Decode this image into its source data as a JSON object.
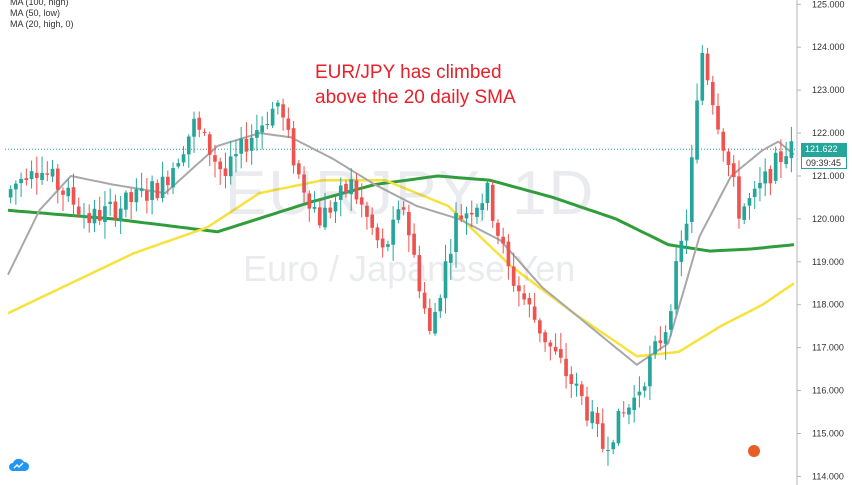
{
  "legend": {
    "items": [
      "MA (100, high)",
      "MA (50, low)",
      "MA (20, high, 0)"
    ]
  },
  "annotation": {
    "line1": "EUR/JPY has climbed",
    "line2": "above the 20 daily SMA"
  },
  "watermark": {
    "symbol": "EURJPY, 1D",
    "description": "Euro / Japanese Yen"
  },
  "price_tag": {
    "price": "121.622",
    "countdown": "09:39:45"
  },
  "colors": {
    "up": "#26a69a",
    "down": "#ef5350",
    "ma100": "#2e9e3a",
    "ma50": "#f7e23b",
    "ma20": "#a8a8a8",
    "annotation": "#e8202a"
  },
  "chart_data": {
    "type": "candlestick",
    "ylim": [
      113.8,
      125.1
    ],
    "yticks": [
      "125.000",
      "124.000",
      "123.000",
      "122.000",
      "121.000",
      "120.000",
      "119.000",
      "118.000",
      "117.000",
      "116.000",
      "115.000",
      "114.000"
    ],
    "last_price": 121.622,
    "candle_count": 150,
    "waypoints": [
      {
        "i": 0,
        "p": 120.5
      },
      {
        "i": 5,
        "p": 121.3
      },
      {
        "i": 9,
        "p": 120.9
      },
      {
        "i": 16,
        "p": 120.0
      },
      {
        "i": 22,
        "p": 120.3
      },
      {
        "i": 30,
        "p": 120.8
      },
      {
        "i": 36,
        "p": 122.2
      },
      {
        "i": 42,
        "p": 121.0
      },
      {
        "i": 46,
        "p": 121.8
      },
      {
        "i": 52,
        "p": 122.7
      },
      {
        "i": 56,
        "p": 121.0
      },
      {
        "i": 60,
        "p": 120.0
      },
      {
        "i": 66,
        "p": 120.8
      },
      {
        "i": 72,
        "p": 119.2
      },
      {
        "i": 76,
        "p": 120.3
      },
      {
        "i": 81,
        "p": 117.3
      },
      {
        "i": 86,
        "p": 120.0
      },
      {
        "i": 92,
        "p": 120.6
      },
      {
        "i": 96,
        "p": 118.8
      },
      {
        "i": 104,
        "p": 117.0
      },
      {
        "i": 110,
        "p": 115.8
      },
      {
        "i": 114,
        "p": 114.7
      },
      {
        "i": 120,
        "p": 115.8
      },
      {
        "i": 126,
        "p": 117.5
      },
      {
        "i": 130,
        "p": 120.0
      },
      {
        "i": 133,
        "p": 123.9
      },
      {
        "i": 136,
        "p": 122.3
      },
      {
        "i": 140,
        "p": 120.2
      },
      {
        "i": 143,
        "p": 120.5
      },
      {
        "i": 146,
        "p": 121.1
      },
      {
        "i": 149,
        "p": 121.62
      }
    ],
    "ma100": [
      {
        "i": 0,
        "p": 120.2
      },
      {
        "i": 20,
        "p": 120.0
      },
      {
        "i": 40,
        "p": 119.7
      },
      {
        "i": 58,
        "p": 120.4
      },
      {
        "i": 70,
        "p": 120.8
      },
      {
        "i": 82,
        "p": 121.0
      },
      {
        "i": 92,
        "p": 120.9
      },
      {
        "i": 104,
        "p": 120.5
      },
      {
        "i": 116,
        "p": 120.0
      },
      {
        "i": 126,
        "p": 119.4
      },
      {
        "i": 134,
        "p": 119.25
      },
      {
        "i": 142,
        "p": 119.3
      },
      {
        "i": 150,
        "p": 119.4
      }
    ],
    "ma50": [
      {
        "i": 0,
        "p": 117.8
      },
      {
        "i": 12,
        "p": 118.5
      },
      {
        "i": 24,
        "p": 119.2
      },
      {
        "i": 38,
        "p": 119.8
      },
      {
        "i": 48,
        "p": 120.6
      },
      {
        "i": 60,
        "p": 120.9
      },
      {
        "i": 72,
        "p": 120.9
      },
      {
        "i": 84,
        "p": 120.3
      },
      {
        "i": 96,
        "p": 118.9
      },
      {
        "i": 108,
        "p": 117.8
      },
      {
        "i": 120,
        "p": 116.8
      },
      {
        "i": 128,
        "p": 116.9
      },
      {
        "i": 136,
        "p": 117.5
      },
      {
        "i": 144,
        "p": 118.0
      },
      {
        "i": 150,
        "p": 118.5
      }
    ],
    "ma20": [
      {
        "i": 0,
        "p": 118.7
      },
      {
        "i": 6,
        "p": 120.2
      },
      {
        "i": 12,
        "p": 121.0
      },
      {
        "i": 20,
        "p": 120.8
      },
      {
        "i": 30,
        "p": 120.6
      },
      {
        "i": 40,
        "p": 121.7
      },
      {
        "i": 48,
        "p": 122.0
      },
      {
        "i": 54,
        "p": 121.9
      },
      {
        "i": 62,
        "p": 121.4
      },
      {
        "i": 70,
        "p": 120.8
      },
      {
        "i": 78,
        "p": 120.3
      },
      {
        "i": 86,
        "p": 120.0
      },
      {
        "i": 94,
        "p": 119.5
      },
      {
        "i": 102,
        "p": 118.4
      },
      {
        "i": 110,
        "p": 117.6
      },
      {
        "i": 116,
        "p": 117.0
      },
      {
        "i": 120,
        "p": 116.6
      },
      {
        "i": 126,
        "p": 117.1
      },
      {
        "i": 132,
        "p": 119.6
      },
      {
        "i": 138,
        "p": 121.0
      },
      {
        "i": 144,
        "p": 121.6
      },
      {
        "i": 147,
        "p": 121.8
      },
      {
        "i": 150,
        "p": 121.5
      }
    ]
  }
}
